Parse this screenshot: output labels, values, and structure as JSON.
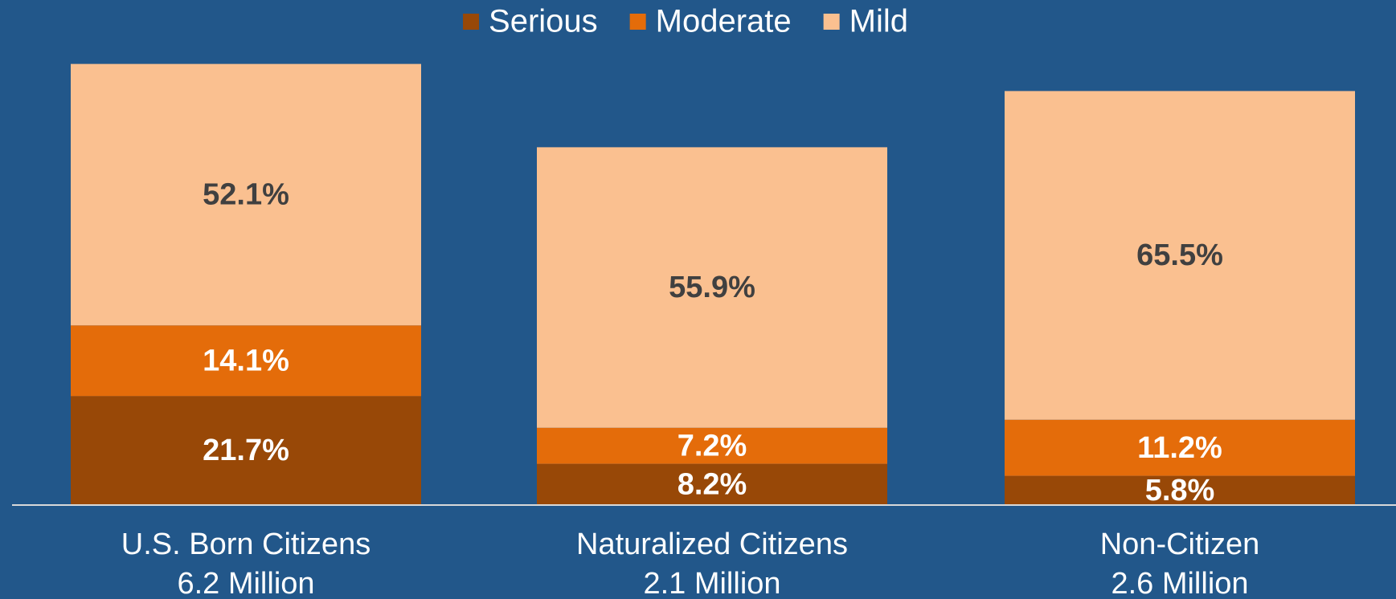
{
  "chart_data": {
    "type": "stacked_bar",
    "categories": [
      "U.S. Born Citizens",
      "Naturalized Citizens",
      "Non-Citizen"
    ],
    "category_totals": [
      "6.2 Million",
      "2.1 Million",
      "2.6 Million"
    ],
    "series": [
      {
        "name": "Serious",
        "color": "#984807",
        "label_color": "#ffffff",
        "values": [
          21.7,
          8.2,
          5.8
        ],
        "value_labels": [
          "21.7%",
          "8.2%",
          "5.8%"
        ]
      },
      {
        "name": "Moderate",
        "color": "#e46c0a",
        "label_color": "#ffffff",
        "values": [
          14.1,
          7.2,
          11.2
        ],
        "value_labels": [
          "14.1%",
          "7.2%",
          "11.2%"
        ]
      },
      {
        "name": "Mild",
        "color": "#fac090",
        "label_color": "#404040",
        "values": [
          52.1,
          55.9,
          65.5
        ],
        "value_labels": [
          "52.1%",
          "55.9%",
          "65.5%"
        ]
      }
    ],
    "legend": "top"
  }
}
